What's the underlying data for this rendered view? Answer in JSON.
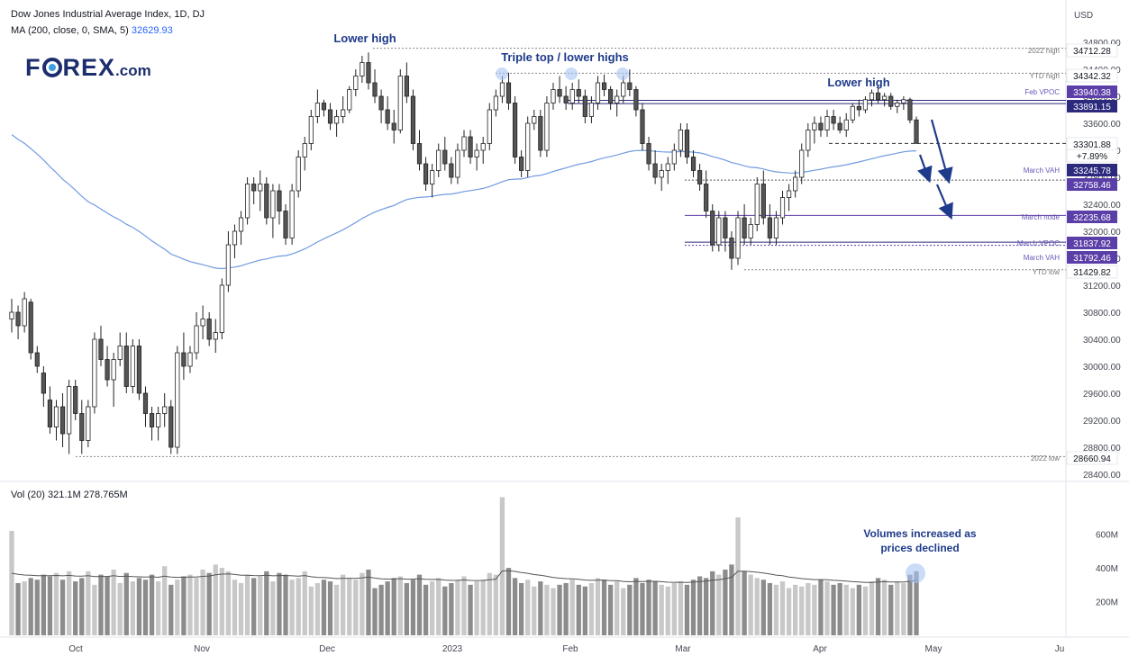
{
  "header": {
    "symbol": "Dow Jones Industrial Average Index, 1D, DJ",
    "ma_label": "MA (200, close, 0, SMA, 5)",
    "ma_value": "32629.93",
    "vol_label": "Vol (20)",
    "vol_value1": "321.1M",
    "vol_value2": "278.765M"
  },
  "logo": {
    "text_a": "F",
    "text_b": "REX",
    "text_c": ".com"
  },
  "colors": {
    "up": "#ffffff",
    "down": "#555555",
    "wick": "#222222",
    "ma": "#6f9be0",
    "accent_blue": "#1e3a8a",
    "level_purple": "#5b3fa8",
    "level_navy": "#2b2a7d",
    "level_light": "#9a8ccf",
    "vol_light": "#c8c8c8",
    "vol_dark": "#8c8c8c"
  },
  "chart_data": {
    "type": "candlestick",
    "currency": "USD",
    "y_ticks": [
      "34800.00",
      "34400.00",
      "34000.00",
      "33600.00",
      "33200.00",
      "32800.00",
      "32400.00",
      "32000.00",
      "31600.00",
      "31200.00",
      "30800.00",
      "30400.00",
      "30000.00",
      "29600.00",
      "29200.00",
      "28800.00",
      "28400.00"
    ],
    "x_labels": [
      "Oct",
      "Nov",
      "Dec",
      "2023",
      "Feb",
      "Mar",
      "Apr",
      "May",
      "Ju"
    ],
    "vol_ticks": [
      "600M",
      "400M",
      "200M"
    ],
    "price_labels": [
      {
        "value": "34712.28",
        "style": "plain",
        "note": "2022 high"
      },
      {
        "value": "34342.32",
        "style": "plain",
        "note": "YTD high"
      },
      {
        "value": "33940.38",
        "style": "purple",
        "note": "Feb VPOC"
      },
      {
        "value": "33891.15",
        "style": "navy",
        "note": ""
      },
      {
        "value": "33301.88",
        "style": "plain",
        "note": ""
      },
      {
        "value": "+7.89%",
        "style": "plain",
        "note": ""
      },
      {
        "value": "33245.78",
        "style": "navy",
        "note": "March VAH"
      },
      {
        "value": "32758.46",
        "style": "purple",
        "note": ""
      },
      {
        "value": "32235.68",
        "style": "purple",
        "note": "March node"
      },
      {
        "value": "31837.92",
        "style": "purple",
        "note": "March VPOC"
      },
      {
        "value": "31792.46",
        "style": "purple",
        "note": "March VAH"
      },
      {
        "value": "31429.82",
        "style": "plain",
        "note": "YTD low"
      },
      {
        "value": "28660.94",
        "style": "plain",
        "note": "2022 low"
      }
    ],
    "annotations": [
      {
        "text": "Lower high"
      },
      {
        "text": "Triple top / lower highs"
      },
      {
        "text": "Lower high"
      },
      {
        "text": "Volumes increased as"
      },
      {
        "text": "prices declined"
      }
    ],
    "ohlc": [
      [
        30700,
        31000,
        30500,
        30800
      ],
      [
        30800,
        30900,
        30400,
        30600
      ],
      [
        30600,
        31100,
        30500,
        31000
      ],
      [
        30950,
        31000,
        30100,
        30200
      ],
      [
        30200,
        30300,
        29900,
        30000
      ],
      [
        29900,
        30000,
        29400,
        29600
      ],
      [
        29500,
        29700,
        29000,
        29100
      ],
      [
        29100,
        29500,
        28900,
        29400
      ],
      [
        29400,
        29600,
        28800,
        29000
      ],
      [
        29000,
        29800,
        28700,
        29700
      ],
      [
        29700,
        29800,
        29200,
        29300
      ],
      [
        29300,
        29500,
        28700,
        28900
      ],
      [
        28900,
        29500,
        28800,
        29400
      ],
      [
        29400,
        30500,
        29300,
        30400
      ],
      [
        30400,
        30600,
        30000,
        30100
      ],
      [
        30100,
        30300,
        29700,
        29800
      ],
      [
        29800,
        30200,
        29400,
        30100
      ],
      [
        30100,
        30500,
        30000,
        30300
      ],
      [
        30300,
        30500,
        29600,
        29700
      ],
      [
        29700,
        30400,
        29600,
        30300
      ],
      [
        30300,
        30400,
        29500,
        29600
      ],
      [
        29600,
        29700,
        29100,
        29300
      ],
      [
        29300,
        29400,
        28900,
        29100
      ],
      [
        29100,
        29400,
        28900,
        29300
      ],
      [
        29300,
        29600,
        29100,
        29400
      ],
      [
        29400,
        29500,
        28700,
        28800
      ],
      [
        28800,
        30300,
        28700,
        30200
      ],
      [
        30200,
        30500,
        29800,
        30000
      ],
      [
        30000,
        30300,
        29900,
        30200
      ],
      [
        30200,
        30800,
        30100,
        30600
      ],
      [
        30600,
        30900,
        30400,
        30700
      ],
      [
        30700,
        30800,
        30300,
        30400
      ],
      [
        30400,
        30700,
        30200,
        30500
      ],
      [
        30500,
        31300,
        30400,
        31200
      ],
      [
        31200,
        32000,
        31100,
        31800
      ],
      [
        31800,
        32100,
        31600,
        32000
      ],
      [
        32000,
        32300,
        31800,
        32200
      ],
      [
        32200,
        32800,
        32100,
        32700
      ],
      [
        32700,
        32800,
        32400,
        32600
      ],
      [
        32600,
        32900,
        32300,
        32700
      ],
      [
        32700,
        32800,
        32100,
        32200
      ],
      [
        32200,
        32700,
        31900,
        32600
      ],
      [
        32600,
        32700,
        32100,
        32300
      ],
      [
        32300,
        32400,
        31800,
        31900
      ],
      [
        31900,
        32700,
        31800,
        32600
      ],
      [
        32600,
        33200,
        32500,
        33100
      ],
      [
        33100,
        33400,
        32900,
        33300
      ],
      [
        33300,
        33800,
        33200,
        33700
      ],
      [
        33700,
        34100,
        33600,
        33900
      ],
      [
        33900,
        33950,
        33700,
        33800
      ],
      [
        33800,
        33900,
        33500,
        33600
      ],
      [
        33600,
        33800,
        33400,
        33700
      ],
      [
        33700,
        34000,
        33600,
        33800
      ],
      [
        33800,
        34150,
        33750,
        34100
      ],
      [
        34100,
        34400,
        34000,
        34300
      ],
      [
        34300,
        34600,
        34200,
        34500
      ],
      [
        34500,
        34650,
        34100,
        34200
      ],
      [
        34200,
        34400,
        33900,
        34000
      ],
      [
        34000,
        34100,
        33600,
        33800
      ],
      [
        33800,
        34000,
        33500,
        33600
      ],
      [
        33600,
        33800,
        33300,
        33500
      ],
      [
        33500,
        34400,
        33450,
        34300
      ],
      [
        34300,
        34500,
        33900,
        34000
      ],
      [
        34000,
        34100,
        33200,
        33300
      ],
      [
        33300,
        33500,
        32900,
        33000
      ],
      [
        33000,
        33100,
        32600,
        32700
      ],
      [
        32700,
        33000,
        32500,
        32900
      ],
      [
        32900,
        33300,
        32800,
        33200
      ],
      [
        33200,
        33400,
        32900,
        33000
      ],
      [
        33000,
        33100,
        32700,
        32800
      ],
      [
        32800,
        33300,
        32700,
        33200
      ],
      [
        33200,
        33500,
        33100,
        33400
      ],
      [
        33400,
        33500,
        33000,
        33100
      ],
      [
        33100,
        33300,
        32900,
        33200
      ],
      [
        33200,
        33400,
        33000,
        33300
      ],
      [
        33300,
        33900,
        33200,
        33800
      ],
      [
        33800,
        34100,
        33700,
        34000
      ],
      [
        34000,
        34300,
        33900,
        34200
      ],
      [
        34200,
        34350,
        33800,
        33900
      ],
      [
        33900,
        34000,
        33000,
        33100
      ],
      [
        33100,
        33200,
        32800,
        32900
      ],
      [
        32900,
        33700,
        32800,
        33600
      ],
      [
        33600,
        33800,
        33500,
        33700
      ],
      [
        33700,
        33800,
        33100,
        33200
      ],
      [
        33200,
        34000,
        33100,
        33900
      ],
      [
        33900,
        34200,
        33800,
        34100
      ],
      [
        34100,
        34300,
        33900,
        34000
      ],
      [
        34000,
        34150,
        33800,
        33900
      ],
      [
        33900,
        34200,
        33800,
        34100
      ],
      [
        34100,
        34250,
        33900,
        34000
      ],
      [
        34000,
        34100,
        33600,
        33700
      ],
      [
        33700,
        34000,
        33600,
        33900
      ],
      [
        33900,
        34300,
        33800,
        34200
      ],
      [
        34200,
        34320,
        34000,
        34100
      ],
      [
        34100,
        34150,
        33800,
        33900
      ],
      [
        33900,
        34100,
        33700,
        34000
      ],
      [
        34000,
        34300,
        33900,
        34200
      ],
      [
        34200,
        34400,
        34000,
        34100
      ],
      [
        34100,
        34150,
        33700,
        33800
      ],
      [
        33800,
        33900,
        33200,
        33300
      ],
      [
        33300,
        33400,
        32900,
        33000
      ],
      [
        33000,
        33200,
        32700,
        32800
      ],
      [
        32800,
        33000,
        32600,
        32900
      ],
      [
        32900,
        33100,
        32700,
        33000
      ],
      [
        33000,
        33300,
        32900,
        33200
      ],
      [
        33200,
        33600,
        33100,
        33500
      ],
      [
        33500,
        33600,
        33000,
        33100
      ],
      [
        33100,
        33200,
        32800,
        32900
      ],
      [
        32900,
        33000,
        32600,
        32700
      ],
      [
        32700,
        32900,
        32200,
        32300
      ],
      [
        32300,
        32400,
        31700,
        31800
      ],
      [
        31800,
        32300,
        31700,
        32200
      ],
      [
        32200,
        32300,
        31700,
        31900
      ],
      [
        31900,
        32000,
        31429,
        31600
      ],
      [
        31600,
        32300,
        31500,
        32200
      ],
      [
        32200,
        32400,
        31800,
        31900
      ],
      [
        31900,
        32200,
        31800,
        32100
      ],
      [
        32100,
        32800,
        32000,
        32700
      ],
      [
        32700,
        32900,
        32100,
        32200
      ],
      [
        32200,
        32400,
        31800,
        31900
      ],
      [
        31900,
        32300,
        31800,
        32200
      ],
      [
        32200,
        32600,
        32100,
        32500
      ],
      [
        32500,
        32700,
        32300,
        32600
      ],
      [
        32600,
        32900,
        32500,
        32800
      ],
      [
        32800,
        33300,
        32700,
        33200
      ],
      [
        33200,
        33600,
        33100,
        33500
      ],
      [
        33500,
        33700,
        33300,
        33600
      ],
      [
        33600,
        33700,
        33400,
        33500
      ],
      [
        33500,
        33800,
        33400,
        33700
      ],
      [
        33700,
        33800,
        33500,
        33600
      ],
      [
        33600,
        33700,
        33450,
        33500
      ],
      [
        33500,
        33750,
        33400,
        33650
      ],
      [
        33650,
        33900,
        33600,
        33850
      ],
      [
        33850,
        33950,
        33700,
        33800
      ],
      [
        33800,
        34000,
        33750,
        33950
      ],
      [
        33950,
        34100,
        33850,
        34050
      ],
      [
        34050,
        34150,
        33900,
        33950
      ],
      [
        33950,
        34050,
        33850,
        34000
      ],
      [
        34000,
        34050,
        33800,
        33850
      ],
      [
        33850,
        33950,
        33750,
        33900
      ],
      [
        33900,
        34000,
        33800,
        33950
      ],
      [
        33950,
        33980,
        33600,
        33650
      ],
      [
        33650,
        33700,
        33300,
        33302
      ]
    ],
    "volume_millions": [
      620,
      310,
      320,
      340,
      330,
      360,
      350,
      370,
      330,
      380,
      320,
      340,
      380,
      300,
      360,
      350,
      390,
      310,
      370,
      320,
      340,
      330,
      360,
      320,
      410,
      300,
      330,
      350,
      360,
      340,
      390,
      370,
      420,
      400,
      380,
      330,
      310,
      360,
      340,
      350,
      380,
      320,
      370,
      360,
      330,
      340,
      380,
      290,
      310,
      330,
      320,
      300,
      360,
      340,
      330,
      370,
      390,
      280,
      300,
      320,
      340,
      350,
      310,
      330,
      360,
      300,
      320,
      340,
      290,
      310,
      330,
      350,
      300,
      320,
      330,
      370,
      360,
      820,
      400,
      340,
      310,
      330,
      290,
      320,
      300,
      280,
      300,
      310,
      330,
      300,
      290,
      310,
      340,
      330,
      300,
      320,
      280,
      300,
      340,
      310,
      330,
      320,
      300,
      290,
      310,
      320,
      300,
      330,
      350,
      340,
      380,
      360,
      390,
      420,
      700,
      380,
      360,
      340,
      330,
      310,
      300,
      320,
      280,
      300,
      290,
      310,
      300,
      330,
      320,
      300,
      310,
      300,
      280,
      300,
      290,
      320,
      340,
      330,
      300,
      320,
      310,
      360,
      380
    ]
  }
}
